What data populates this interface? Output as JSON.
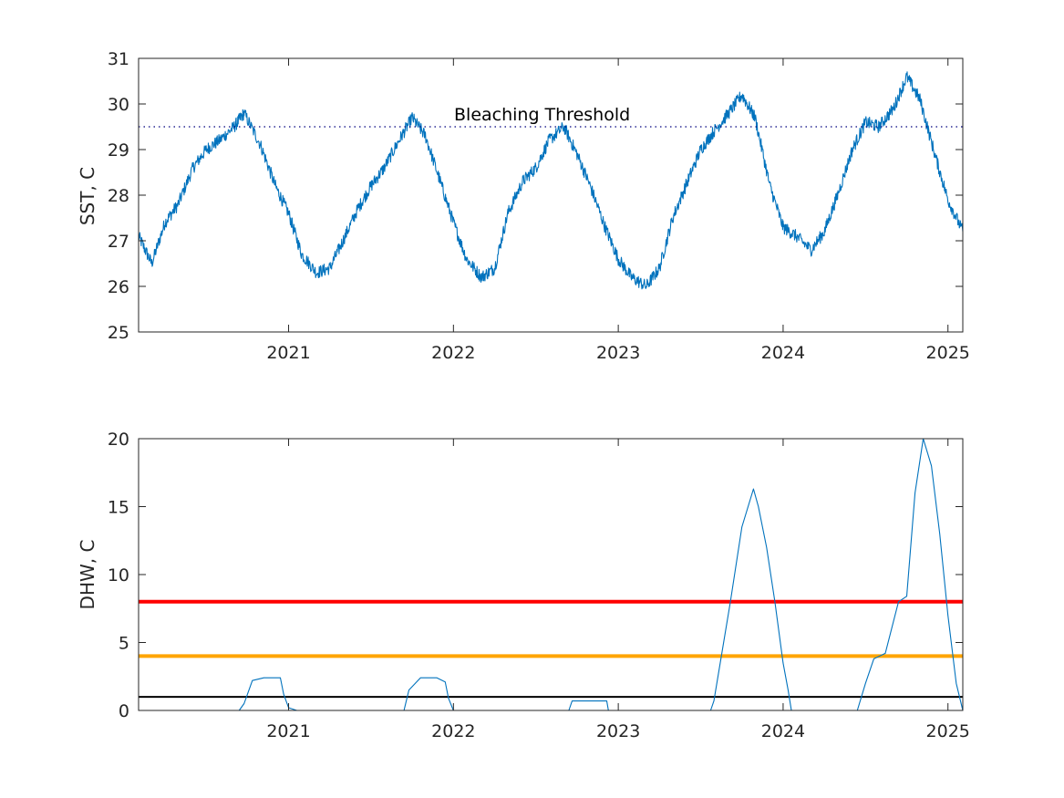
{
  "chart_data": [
    {
      "type": "line",
      "ylabel": "SST, C",
      "xlabel": "",
      "xlim": [
        2020.09,
        2025.09
      ],
      "ylim": [
        25,
        31
      ],
      "xticks": [
        2021,
        2022,
        2023,
        2024,
        2025
      ],
      "xtick_labels": [
        "2021",
        "2022",
        "2023",
        "2024",
        "2025"
      ],
      "yticks": [
        25,
        26,
        27,
        28,
        29,
        30,
        31
      ],
      "ytick_labels": [
        "25",
        "26",
        "27",
        "28",
        "29",
        "30",
        "31"
      ],
      "grid": false,
      "reference_lines": [
        {
          "y": 29.5,
          "style": "dotted",
          "color": "#00007F",
          "label": "Bleaching Threshold"
        }
      ],
      "annotation": {
        "text": "Bleaching Threshold",
        "x": 2022.0,
        "y": 29.7
      },
      "series": [
        {
          "color": "#0072BD",
          "x": [
            2020.09,
            2020.17,
            2020.25,
            2020.33,
            2020.42,
            2020.5,
            2020.58,
            2020.67,
            2020.73,
            2020.83,
            2020.92,
            2021.0,
            2021.08,
            2021.17,
            2021.25,
            2021.33,
            2021.42,
            2021.5,
            2021.58,
            2021.67,
            2021.75,
            2021.83,
            2021.92,
            2022.0,
            2022.08,
            2022.17,
            2022.25,
            2022.33,
            2022.42,
            2022.5,
            2022.58,
            2022.67,
            2022.75,
            2022.83,
            2022.92,
            2023.0,
            2023.08,
            2023.17,
            2023.25,
            2023.33,
            2023.42,
            2023.5,
            2023.58,
            2023.67,
            2023.75,
            2023.83,
            2023.92,
            2024.0,
            2024.08,
            2024.17,
            2024.25,
            2024.33,
            2024.42,
            2024.5,
            2024.58,
            2024.67,
            2024.75,
            2024.83,
            2024.92,
            2025.0,
            2025.09
          ],
          "y": [
            27.1,
            26.5,
            27.4,
            27.8,
            28.6,
            29.0,
            29.2,
            29.5,
            29.8,
            29.1,
            28.2,
            27.6,
            26.7,
            26.3,
            26.4,
            27.0,
            27.7,
            28.2,
            28.6,
            29.2,
            29.7,
            29.3,
            28.3,
            27.4,
            26.6,
            26.2,
            26.4,
            27.6,
            28.3,
            28.6,
            29.2,
            29.5,
            28.9,
            28.2,
            27.3,
            26.6,
            26.2,
            26.0,
            26.4,
            27.5,
            28.3,
            29.0,
            29.4,
            29.8,
            30.2,
            29.7,
            28.2,
            27.3,
            27.1,
            26.8,
            27.2,
            28.0,
            29.0,
            29.6,
            29.5,
            29.9,
            30.6,
            30.1,
            28.9,
            27.9,
            27.2
          ]
        }
      ]
    },
    {
      "type": "line",
      "ylabel": "DHW, C",
      "xlabel": "",
      "xlim": [
        2020.09,
        2025.09
      ],
      "ylim": [
        0,
        20
      ],
      "xticks": [
        2021,
        2022,
        2023,
        2024,
        2025
      ],
      "xtick_labels": [
        "2021",
        "2022",
        "2023",
        "2024",
        "2025"
      ],
      "yticks": [
        0,
        5,
        10,
        15,
        20
      ],
      "ytick_labels": [
        "0",
        "5",
        "10",
        "15",
        "20"
      ],
      "grid": false,
      "reference_lines": [
        {
          "y": 8,
          "color": "#FF0000",
          "width": "thick"
        },
        {
          "y": 4,
          "color": "#FFA500",
          "width": "thick"
        },
        {
          "y": 1,
          "color": "#000000",
          "width": "normal"
        }
      ],
      "series": [
        {
          "color": "#0072BD",
          "x": [
            2020.09,
            2020.7,
            2020.73,
            2020.78,
            2020.85,
            2020.9,
            2020.95,
            2020.97,
            2021.0,
            2021.05,
            2021.7,
            2021.73,
            2021.8,
            2021.9,
            2021.95,
            2021.97,
            2022.0,
            2022.7,
            2022.72,
            2022.93,
            2022.94,
            2023.56,
            2023.58,
            2023.62,
            2023.68,
            2023.75,
            2023.82,
            2023.85,
            2023.9,
            2023.95,
            2024.0,
            2024.03,
            2024.05,
            2024.07,
            2024.45,
            2024.5,
            2024.55,
            2024.62,
            2024.7,
            2024.75,
            2024.8,
            2024.85,
            2024.9,
            2024.95,
            2025.0,
            2025.05,
            2025.09
          ],
          "y": [
            0,
            0,
            0.5,
            2.2,
            2.4,
            2.4,
            2.4,
            1.2,
            0.2,
            0,
            0,
            1.5,
            2.4,
            2.4,
            2.1,
            0.9,
            0,
            0,
            0.7,
            0.7,
            0,
            0,
            0.7,
            3.6,
            8.0,
            13.5,
            16.3,
            15.0,
            12.0,
            8.0,
            3.5,
            1.5,
            0,
            0,
            0,
            2.0,
            3.8,
            4.2,
            8.0,
            8.4,
            16.0,
            20.0,
            18.0,
            13.0,
            7.0,
            2.0,
            0
          ]
        }
      ]
    }
  ]
}
